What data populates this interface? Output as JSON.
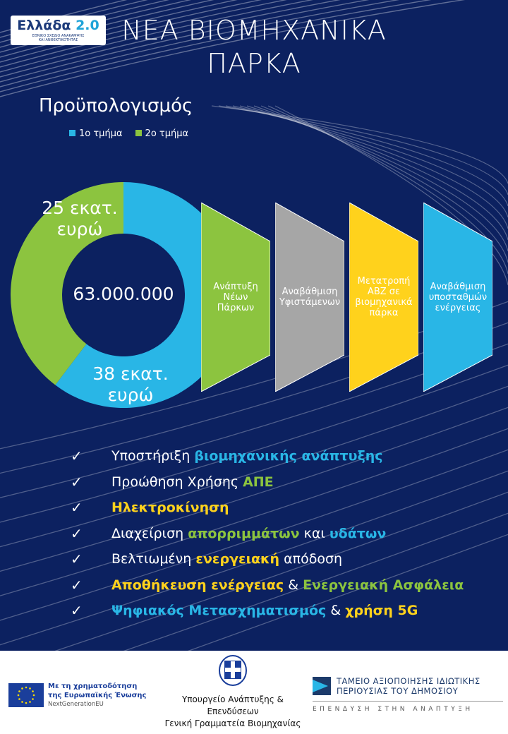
{
  "logo": {
    "name": "Ελλάδα",
    "version": "2.0",
    "subtitle_1": "ΕΘΝΙΚΟ ΣΧΕΔΙΟ ΑΝΑΚΑΜΨΗΣ",
    "subtitle_2": "ΚΑΙ ΑΝΘΕΚΤΙΚΟΤΗΤΑΣ"
  },
  "title_line1": "ΝΕΑ ΒΙΟΜΗΧΑΝΙΚΑ",
  "title_line2": "ΠΑΡΚΑ",
  "colors": {
    "background": "#0c2160",
    "blue": "#29b6e6",
    "green": "#8cc43f",
    "yellow": "#ffd21c",
    "gray": "#a6a6a6"
  },
  "chart_data": {
    "type": "pie",
    "style": "donut",
    "title": "Προϋπολογισμός",
    "legend_placement": "top",
    "total_label": "63.000.000",
    "series": [
      {
        "name": "1ο τμήμα",
        "value": 38,
        "label_line1": "38 εκατ.",
        "label_line2": "ευρώ",
        "color": "#29b6e6"
      },
      {
        "name": "2ο τμήμα",
        "value": 25,
        "label_line1": "25 εκατ.",
        "label_line2": "ευρώ",
        "color": "#8cc43f"
      }
    ]
  },
  "stages": [
    {
      "lines": [
        "Ανάπτυξη",
        "Νέων",
        "Πάρκων"
      ],
      "color": "#8cc43f"
    },
    {
      "lines": [
        "Αναβάθμιση",
        "Υφιστάμενων"
      ],
      "color": "#a6a6a6"
    },
    {
      "lines": [
        "Μετατροπή",
        "ΑΒΖ σε",
        "βιομηχανικά",
        "πάρκα"
      ],
      "color": "#ffd21c"
    },
    {
      "lines": [
        "Αναβάθμιση",
        "υποσταθμών",
        "ενέργειας"
      ],
      "color": "#29b6e6"
    }
  ],
  "checkmark_icon": "✓",
  "checklist": [
    [
      {
        "t": "Υποστήριξη ",
        "c": "white"
      },
      {
        "t": "βιομηχανικής ανάπτυξης",
        "c": "blue"
      }
    ],
    [
      {
        "t": "Προώθηση Χρήσης ",
        "c": "white"
      },
      {
        "t": "ΑΠΕ",
        "c": "green"
      }
    ],
    [
      {
        "t": "Ηλεκτροκίνηση",
        "c": "yellow"
      }
    ],
    [
      {
        "t": "Διαχείριση ",
        "c": "white"
      },
      {
        "t": "απορριμμάτων",
        "c": "green"
      },
      {
        "t": " και ",
        "c": "white"
      },
      {
        "t": "υδάτων",
        "c": "blue"
      }
    ],
    [
      {
        "t": "Βελτιωμένη ",
        "c": "white"
      },
      {
        "t": "ενεργειακή",
        "c": "yellow"
      },
      {
        "t": " απόδοση",
        "c": "white"
      }
    ],
    [
      {
        "t": "Αποθήκευση ενέργειας",
        "c": "yellow"
      },
      {
        "t": " & ",
        "c": "white"
      },
      {
        "t": "Ενεργειακή Ασφάλεια",
        "c": "green"
      }
    ],
    [
      {
        "t": "Ψηφιακός Μετασχηματισμός",
        "c": "blue"
      },
      {
        "t": " & ",
        "c": "white"
      },
      {
        "t": "χρήση 5G",
        "c": "yellow"
      }
    ]
  ],
  "footer": {
    "eu_line1": "Με τη χρηματοδότηση",
    "eu_line2": "της Ευρωπαϊκής Ένωσης",
    "eu_line3": "NextGenerationEU",
    "ministry_line1": "Υπουργείο Ανάπτυξης &",
    "ministry_line2": "Επενδύσεων",
    "ministry_line3": "Γενική Γραμματεία Βιομηχανίας",
    "taiped_line1": "ΤΑΜΕΙΟ ΑΞΙΟΠΟΙΗΣΗΣ ΙΔΙΩΤΙΚΗΣ",
    "taiped_line2": "ΠΕΡΙΟΥΣΙΑΣ ΤΟΥ ΔΗΜΟΣΙΟΥ",
    "taiped_tagline": "ΕΠΕΝΔΥΣΗ ΣΤΗΝ ΑΝΑΠΤΥΞΗ"
  }
}
